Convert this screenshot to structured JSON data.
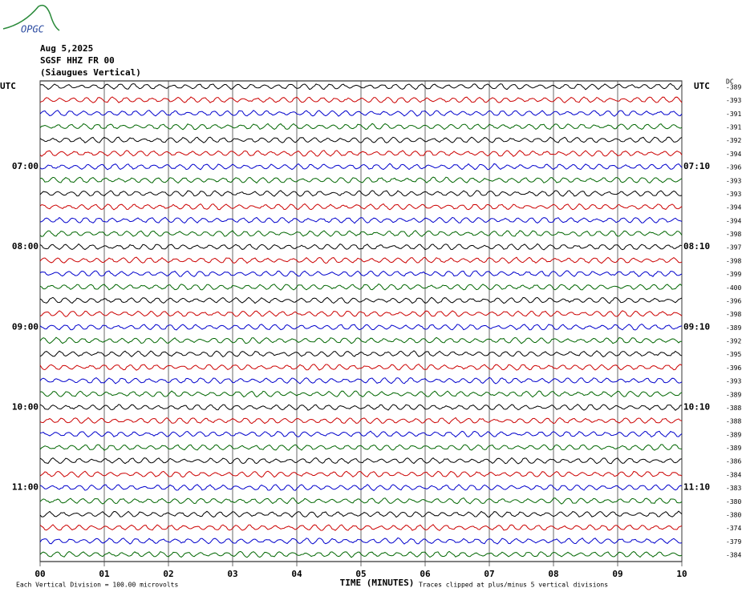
{
  "logo": "OPGC",
  "header": {
    "date": "Aug 5,2025",
    "station": "SGSF HHZ FR 00",
    "name": "(Siaugues Vertical)"
  },
  "dc_label": "DC",
  "trace_colors": [
    "#000000",
    "#cc0000",
    "#0000cc",
    "#006600"
  ],
  "rows": [
    {
      "left": "UTC",
      "right": "UTC",
      "dc": -389
    },
    {
      "left": null,
      "right": null,
      "dc": -393
    },
    {
      "left": null,
      "right": null,
      "dc": -391
    },
    {
      "left": null,
      "right": null,
      "dc": -391
    },
    {
      "left": null,
      "right": null,
      "dc": -392
    },
    {
      "left": null,
      "right": null,
      "dc": -394
    },
    {
      "left": "07:00",
      "right": "07:10",
      "dc": -396
    },
    {
      "left": null,
      "right": null,
      "dc": -393
    },
    {
      "left": null,
      "right": null,
      "dc": -393
    },
    {
      "left": null,
      "right": null,
      "dc": -394
    },
    {
      "left": null,
      "right": null,
      "dc": -394
    },
    {
      "left": null,
      "right": null,
      "dc": -398
    },
    {
      "left": "08:00",
      "right": "08:10",
      "dc": -397
    },
    {
      "left": null,
      "right": null,
      "dc": -398
    },
    {
      "left": null,
      "right": null,
      "dc": -399
    },
    {
      "left": null,
      "right": null,
      "dc": -400
    },
    {
      "left": null,
      "right": null,
      "dc": -396
    },
    {
      "left": null,
      "right": null,
      "dc": -398
    },
    {
      "left": "09:00",
      "right": "09:10",
      "dc": -389
    },
    {
      "left": null,
      "right": null,
      "dc": -392
    },
    {
      "left": null,
      "right": null,
      "dc": -395
    },
    {
      "left": null,
      "right": null,
      "dc": -396
    },
    {
      "left": null,
      "right": null,
      "dc": -393
    },
    {
      "left": null,
      "right": null,
      "dc": -389
    },
    {
      "left": "10:00",
      "right": "10:10",
      "dc": -388
    },
    {
      "left": null,
      "right": null,
      "dc": -388
    },
    {
      "left": null,
      "right": null,
      "dc": -389
    },
    {
      "left": null,
      "right": null,
      "dc": -389
    },
    {
      "left": null,
      "right": null,
      "dc": -386
    },
    {
      "left": null,
      "right": null,
      "dc": -384
    },
    {
      "left": "11:00",
      "right": "11:10",
      "dc": -383
    },
    {
      "left": null,
      "right": null,
      "dc": -380
    },
    {
      "left": null,
      "right": null,
      "dc": -380
    },
    {
      "left": null,
      "right": null,
      "dc": -374
    },
    {
      "left": null,
      "right": null,
      "dc": -379
    },
    {
      "left": null,
      "right": null,
      "dc": -384
    }
  ],
  "x_axis": {
    "label": "TIME (MINUTES)",
    "lim": [
      0,
      10
    ],
    "ticks": [
      {
        "value": 0,
        "label": "00"
      },
      {
        "value": 1,
        "label": "01"
      },
      {
        "value": 2,
        "label": "02"
      },
      {
        "value": 3,
        "label": "03"
      },
      {
        "value": 4,
        "label": "04"
      },
      {
        "value": 5,
        "label": "05"
      },
      {
        "value": 6,
        "label": "06"
      },
      {
        "value": 7,
        "label": "07"
      },
      {
        "value": 8,
        "label": "08"
      },
      {
        "value": 9,
        "label": "09"
      },
      {
        "value": 10,
        "label": "10"
      }
    ]
  },
  "footer": {
    "scale": "Each Vertical Division =  100.00 microvolts",
    "clip": "Traces clipped at plus/minus 5 vertical divisions"
  }
}
